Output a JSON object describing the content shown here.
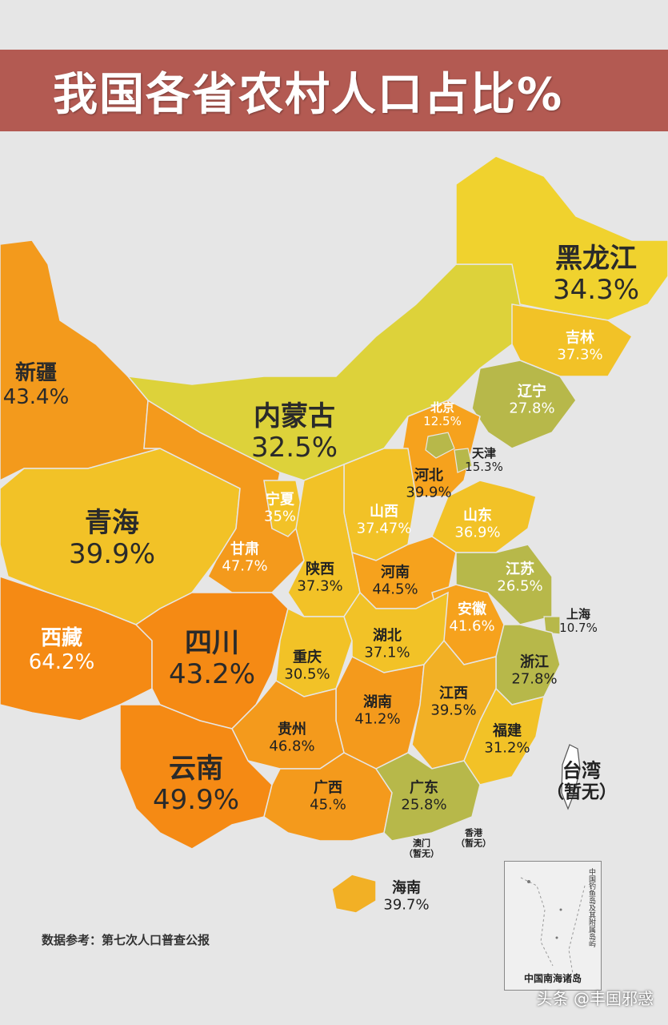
{
  "title": "我国各省农村人口占比%",
  "source_note": "数据参考：第七次人口普查公报",
  "inset": {
    "label": "中国南海诸岛",
    "note": "中国钓鱼岛及其附属岛屿"
  },
  "watermark": "头条 @丰国邪惑",
  "colors": {
    "banner": "#b35a52",
    "background": "#e6e6e6",
    "low": "#b7b84a",
    "mid_low": "#ddd23a",
    "mid": "#f2c227",
    "mid_high": "#f6a21d",
    "high": "#f28b16"
  },
  "regions": [
    {
      "id": "heilongjiang",
      "name": "黑龙江",
      "value": "34.3%"
    },
    {
      "id": "jilin",
      "name": "吉林",
      "value": "37.3%"
    },
    {
      "id": "liaoning",
      "name": "辽宁",
      "value": "27.8%"
    },
    {
      "id": "neimenggu",
      "name": "内蒙古",
      "value": "32.5%"
    },
    {
      "id": "beijing",
      "name": "北京",
      "value": "12.5%"
    },
    {
      "id": "tianjin",
      "name": "天津",
      "value": "15.3%"
    },
    {
      "id": "hebei",
      "name": "河北",
      "value": "39.9%"
    },
    {
      "id": "shandong",
      "name": "山东",
      "value": "36.9%"
    },
    {
      "id": "shanxi",
      "name": "山西",
      "value": "37.47%"
    },
    {
      "id": "ningxia",
      "name": "宁夏",
      "value": "35%"
    },
    {
      "id": "xinjiang",
      "name": "新疆",
      "value": "43.4%"
    },
    {
      "id": "qinghai",
      "name": "青海",
      "value": "39.9%"
    },
    {
      "id": "gansu",
      "name": "甘肃",
      "value": "47.7%"
    },
    {
      "id": "shaanxi",
      "name": "陕西",
      "value": "37.3%"
    },
    {
      "id": "henan",
      "name": "河南",
      "value": "44.5%"
    },
    {
      "id": "jiangsu",
      "name": "江苏",
      "value": "26.5%"
    },
    {
      "id": "anhui",
      "name": "安徽",
      "value": "41.6%"
    },
    {
      "id": "shanghai",
      "name": "上海",
      "value": "10.7%"
    },
    {
      "id": "xizang",
      "name": "西藏",
      "value": "64.2%"
    },
    {
      "id": "sichuan",
      "name": "四川",
      "value": "43.2%"
    },
    {
      "id": "chongqing",
      "name": "重庆",
      "value": "30.5%"
    },
    {
      "id": "hubei",
      "name": "湖北",
      "value": "37.1%"
    },
    {
      "id": "zhejiang",
      "name": "浙江",
      "value": "27.8%"
    },
    {
      "id": "hunan",
      "name": "湖南",
      "value": "41.2%"
    },
    {
      "id": "jiangxi",
      "name": "江西",
      "value": "39.5%"
    },
    {
      "id": "guizhou",
      "name": "贵州",
      "value": "46.8%"
    },
    {
      "id": "fujian",
      "name": "福建",
      "value": "31.2%"
    },
    {
      "id": "yunnan",
      "name": "云南",
      "value": "49.9%"
    },
    {
      "id": "guangxi",
      "name": "广西",
      "value": "45.%"
    },
    {
      "id": "guangdong",
      "name": "广东",
      "value": "25.8%"
    },
    {
      "id": "taiwan",
      "name": "台湾",
      "value": "（暂无）"
    },
    {
      "id": "xianggang",
      "name": "香港",
      "value": "（暂无）"
    },
    {
      "id": "aomen",
      "name": "澳门",
      "value": "（暂无）"
    },
    {
      "id": "hainan",
      "name": "海南",
      "value": "39.7%"
    }
  ]
}
